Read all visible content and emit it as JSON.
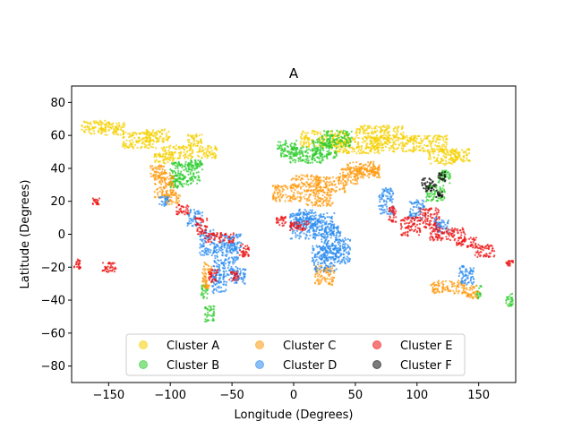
{
  "chart_data": {
    "type": "scatter",
    "title": "A",
    "xlabel": "Longitude (Degrees)",
    "ylabel": "Latitude (Degrees)",
    "xlim": [
      -180,
      180
    ],
    "ylim": [
      -90,
      90
    ],
    "xticks": [
      -150,
      -100,
      -50,
      0,
      50,
      100,
      150
    ],
    "yticks": [
      -80,
      -60,
      -40,
      -20,
      0,
      20,
      40,
      60,
      80
    ],
    "xtick_labels": [
      "−150",
      "−100",
      "−50",
      "0",
      "50",
      "100",
      "150"
    ],
    "ytick_labels": [
      "−80",
      "−60",
      "−40",
      "−20",
      "0",
      "20",
      "40",
      "60",
      "80"
    ],
    "grid": false,
    "legend": {
      "placement": "lower-center",
      "columns": 3
    },
    "series": [
      {
        "name": "Cluster A",
        "color": "#f5d000",
        "regions": [
          [
            -160,
            65,
            12,
            4
          ],
          [
            -125,
            57,
            14,
            5
          ],
          [
            -95,
            50,
            14,
            4
          ],
          [
            -70,
            50,
            8,
            4
          ],
          [
            -110,
            60,
            10,
            4
          ],
          [
            -145,
            64,
            8,
            4
          ],
          [
            -80,
            57,
            6,
            4
          ],
          [
            25,
            58,
            20,
            5
          ],
          [
            50,
            54,
            20,
            5
          ],
          [
            80,
            55,
            18,
            5
          ],
          [
            110,
            55,
            15,
            5
          ],
          [
            120,
            47,
            12,
            5
          ],
          [
            135,
            48,
            8,
            4
          ],
          [
            70,
            62,
            20,
            4
          ],
          [
            -105,
            46,
            8,
            3
          ]
        ],
        "points": []
      },
      {
        "name": "Cluster B",
        "color": "#2ecc2e",
        "regions": [
          [
            -88,
            37,
            12,
            7
          ],
          [
            -95,
            32,
            6,
            4
          ],
          [
            -80,
            42,
            6,
            3
          ],
          [
            10,
            48,
            14,
            5
          ],
          [
            25,
            52,
            10,
            6
          ],
          [
            35,
            58,
            12,
            5
          ],
          [
            -5,
            52,
            8,
            5
          ],
          [
            115,
            25,
            8,
            5
          ],
          [
            122,
            35,
            5,
            4
          ],
          [
            175,
            -40,
            3,
            4
          ],
          [
            -68,
            -48,
            4,
            5
          ],
          [
            -72,
            -35,
            3,
            4
          ],
          [
            150,
            -35,
            2,
            4
          ]
        ],
        "points": []
      },
      {
        "name": "Cluster C",
        "color": "#ff9a0e",
        "regions": [
          [
            -105,
            30,
            8,
            8
          ],
          [
            -98,
            22,
            6,
            4
          ],
          [
            -110,
            38,
            6,
            4
          ],
          [
            10,
            32,
            12,
            4
          ],
          [
            30,
            30,
            12,
            5
          ],
          [
            45,
            35,
            8,
            5
          ],
          [
            60,
            38,
            10,
            4
          ],
          [
            -5,
            25,
            12,
            5
          ],
          [
            20,
            22,
            12,
            5
          ],
          [
            25,
            -25,
            8,
            6
          ],
          [
            -70,
            -25,
            4,
            8
          ],
          [
            130,
            -32,
            10,
            4
          ],
          [
            145,
            -35,
            5,
            4
          ],
          [
            115,
            -32,
            4,
            4
          ],
          [
            55,
            40,
            12,
            4
          ]
        ],
        "points": []
      },
      {
        "name": "Cluster D",
        "color": "#2b8cf0",
        "regions": [
          [
            15,
            5,
            18,
            8
          ],
          [
            30,
            -5,
            8,
            10
          ],
          [
            25,
            -15,
            10,
            8
          ],
          [
            -55,
            -15,
            10,
            10
          ],
          [
            -70,
            -5,
            6,
            8
          ],
          [
            -50,
            -5,
            8,
            5
          ],
          [
            75,
            20,
            6,
            8
          ],
          [
            100,
            15,
            6,
            6
          ],
          [
            -80,
            10,
            6,
            5
          ],
          [
            -105,
            20,
            4,
            3
          ],
          [
            40,
            -10,
            6,
            8
          ],
          [
            -45,
            -25,
            6,
            5
          ],
          [
            -60,
            -30,
            6,
            6
          ],
          [
            140,
            -25,
            6,
            6
          ],
          [
            120,
            5,
            6,
            5
          ],
          [
            10,
            10,
            10,
            5
          ]
        ],
        "points": []
      },
      {
        "name": "Cluster E",
        "color": "#ee1111",
        "regions": [
          [
            95,
            5,
            8,
            6
          ],
          [
            110,
            10,
            8,
            6
          ],
          [
            125,
            0,
            15,
            4
          ],
          [
            140,
            -5,
            8,
            3
          ],
          [
            -75,
            5,
            5,
            5
          ],
          [
            -60,
            -2,
            12,
            3
          ],
          [
            -40,
            -10,
            4,
            4
          ],
          [
            5,
            5,
            8,
            3
          ],
          [
            -10,
            8,
            4,
            3
          ],
          [
            -90,
            15,
            5,
            3
          ],
          [
            -65,
            -25,
            4,
            4
          ],
          [
            -48,
            -25,
            4,
            3
          ],
          [
            155,
            -10,
            8,
            4
          ],
          [
            80,
            12,
            3,
            5
          ],
          [
            -160,
            20,
            3,
            2
          ],
          [
            -175,
            -18,
            3,
            3
          ],
          [
            175,
            -18,
            3,
            2
          ],
          [
            -150,
            -20,
            6,
            3
          ]
        ],
        "points": []
      },
      {
        "name": "Cluster F",
        "color": "#111111",
        "regions": [
          [
            110,
            30,
            6,
            4
          ],
          [
            120,
            35,
            3,
            3
          ],
          [
            118,
            24,
            3,
            2
          ]
        ],
        "points": []
      }
    ]
  }
}
